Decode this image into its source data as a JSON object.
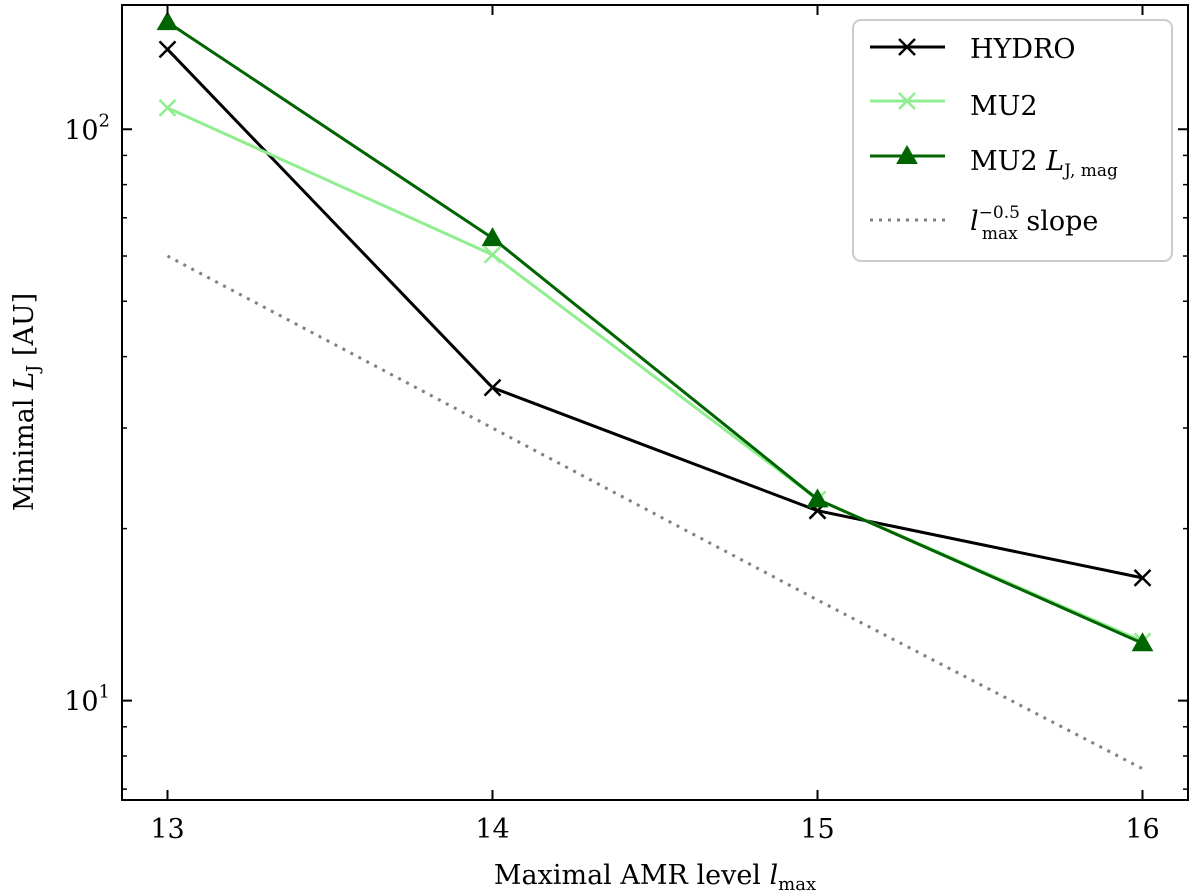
{
  "chart_data": {
    "type": "line",
    "title": "",
    "xlabel": "Maximal AMR level",
    "xlabel_symbol": "l",
    "xlabel_symbol_sub": "max",
    "ylabel": "Minimal",
    "ylabel_symbol": "L",
    "ylabel_symbol_sub": "J",
    "ylabel_unit": "[AU]",
    "x": [
      13,
      14,
      15,
      16
    ],
    "xlim": [
      12.86,
      16.14
    ],
    "ylim": [
      6.7,
      165
    ],
    "yscale": "log",
    "x_ticks": [
      {
        "value": 13,
        "label": "13"
      },
      {
        "value": 14,
        "label": "14"
      },
      {
        "value": 15,
        "label": "15"
      },
      {
        "value": 16,
        "label": "16"
      }
    ],
    "y_major_ticks": [
      {
        "value": 10,
        "base": "10",
        "exp": "1"
      },
      {
        "value": 100,
        "base": "10",
        "exp": "2"
      }
    ],
    "y_minor_ticks": [
      7,
      8,
      9,
      20,
      30,
      40,
      50,
      60,
      70,
      80,
      90
    ],
    "grid": false,
    "legend_position": "top-right",
    "series": [
      {
        "name": "HYDRO",
        "color": "#000000",
        "marker": "x",
        "values": [
          138,
          35.3,
          21.5,
          16.4
        ]
      },
      {
        "name": "MU2",
        "color": "#90ee90",
        "marker": "x",
        "values": [
          109,
          60.3,
          22.5,
          12.7
        ]
      },
      {
        "name": "MU2",
        "name_symbol": "L",
        "name_symbol_sub": "J, mag",
        "color": "#006400",
        "marker": "triangle",
        "values": [
          154,
          64.5,
          22.5,
          12.6
        ]
      },
      {
        "name": "slope",
        "name_symbol": "l",
        "name_symbol_sub": "max",
        "name_symbol_sup": "−0.5",
        "color": "#808080",
        "marker": "none",
        "dash": "dotted",
        "values": [
          60,
          30,
          15,
          7.6
        ]
      }
    ]
  }
}
